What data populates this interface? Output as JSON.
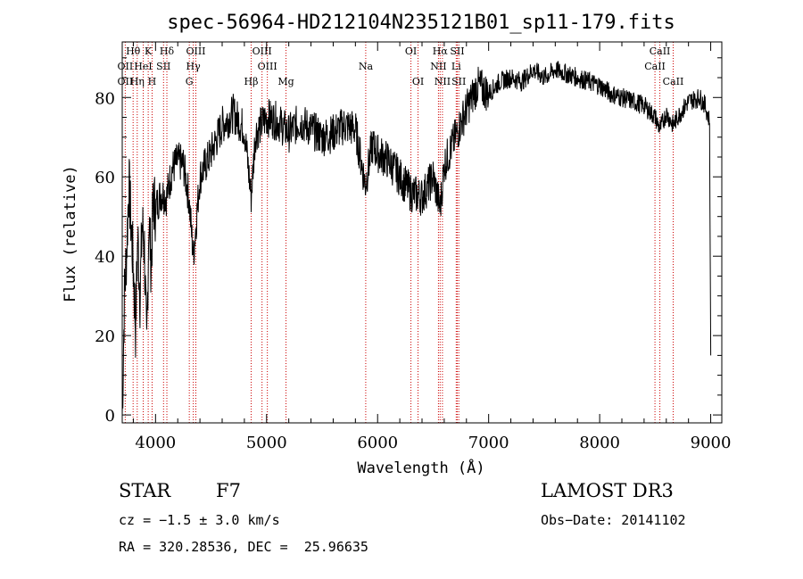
{
  "chart_data": {
    "type": "line",
    "title": "spec-56964-HD212104N235121B01_sp11-179.fits",
    "xlabel": "Wavelength (Å)",
    "ylabel": "Flux (relative)",
    "xlim": [
      3700,
      9100
    ],
    "ylim": [
      -2,
      94
    ],
    "x_ticks": [
      4000,
      5000,
      6000,
      7000,
      8000,
      9000
    ],
    "y_ticks": [
      0,
      20,
      40,
      60,
      80
    ],
    "grid": false,
    "series": [
      {
        "x": [
          3700,
          3720,
          3740,
          3760,
          3780,
          3800,
          3820,
          3840,
          3860,
          3880,
          3900,
          3920,
          3940,
          3960,
          3980,
          4000,
          4050,
          4100,
          4150,
          4200,
          4250,
          4300,
          4340,
          4400,
          4500,
          4600,
          4700,
          4800,
          4861,
          4900,
          5000,
          5100,
          5200,
          5300,
          5400,
          5500,
          5600,
          5700,
          5800,
          5890,
          5950,
          6000,
          6100,
          6200,
          6300,
          6400,
          6500,
          6563,
          6600,
          6700,
          6800,
          6900,
          7000,
          7100,
          7200,
          7300,
          7400,
          7500,
          7600,
          7700,
          7800,
          7900,
          8000,
          8100,
          8200,
          8300,
          8400,
          8500,
          8542,
          8600,
          8662,
          8700,
          8800,
          8900,
          8950,
          8990,
          9000
        ],
        "y": [
          0,
          30,
          42,
          58,
          48,
          37,
          22,
          45,
          30,
          48,
          42,
          15,
          50,
          38,
          54,
          52,
          56,
          55,
          62,
          64,
          63,
          55,
          40,
          60,
          66,
          73,
          76,
          72,
          55,
          71,
          75,
          74,
          71,
          74,
          72,
          70,
          71,
          73,
          72,
          58,
          68,
          66,
          64,
          60,
          56,
          55,
          60,
          52,
          63,
          70,
          77,
          83,
          81,
          84,
          85,
          84,
          87,
          85,
          87,
          86,
          85,
          84,
          83,
          81,
          80,
          79,
          78,
          75,
          72,
          76,
          73,
          75,
          79,
          80,
          78,
          74,
          15
        ]
      }
    ],
    "spectral_lines": [
      {
        "row": 1,
        "label": "Hθ",
        "x": 3798
      },
      {
        "row": 2,
        "label": "OII",
        "x": 3727
      },
      {
        "row": 3,
        "label": "OII",
        "x": 3727
      },
      {
        "row": 3,
        "label": "Hη",
        "x": 3835
      },
      {
        "row": 2,
        "label": "HeI",
        "x": 3889
      },
      {
        "row": 1,
        "label": "K",
        "x": 3934
      },
      {
        "row": 2,
        "label": "SII",
        "x": 4072
      },
      {
        "row": 3,
        "label": "H",
        "x": 3969
      },
      {
        "row": 1,
        "label": "Hδ",
        "x": 4102
      },
      {
        "row": 1,
        "label": "OIII",
        "x": 4363
      },
      {
        "row": 2,
        "label": "Hγ",
        "x": 4340
      },
      {
        "row": 3,
        "label": "G",
        "x": 4304
      },
      {
        "row": 3,
        "label": "Hβ",
        "x": 4861
      },
      {
        "row": 1,
        "label": "OIII",
        "x": 4959
      },
      {
        "row": 2,
        "label": "OIII",
        "x": 5007
      },
      {
        "row": 3,
        "label": "Mg",
        "x": 5175
      },
      {
        "row": 2,
        "label": "Na",
        "x": 5893
      },
      {
        "row": 1,
        "label": "OI",
        "x": 6300
      },
      {
        "row": 3,
        "label": "OI",
        "x": 6364
      },
      {
        "row": 1,
        "label": "Hα",
        "x": 6563
      },
      {
        "row": 2,
        "label": "NII",
        "x": 6548
      },
      {
        "row": 3,
        "label": "NII",
        "x": 6584
      },
      {
        "row": 1,
        "label": "SII",
        "x": 6717
      },
      {
        "row": 2,
        "label": "Li",
        "x": 6708
      },
      {
        "row": 3,
        "label": "SII",
        "x": 6731
      },
      {
        "row": 1,
        "label": "CaII",
        "x": 8542
      },
      {
        "row": 2,
        "label": "CaII",
        "x": 8498
      },
      {
        "row": 3,
        "label": "CaII",
        "x": 8662
      }
    ]
  },
  "info": {
    "object_class": "STAR",
    "subclass": "F7",
    "survey": "LAMOST DR3",
    "redshift": "cz = −1.5 ± 3.0 km/s",
    "obs_date": "Obs−Date: 20141102",
    "coords": "RA = 320.28536, DEC =  25.96635"
  },
  "colors": {
    "line": "#000000",
    "marker_line": "#cc0000",
    "background": "#ffffff"
  }
}
